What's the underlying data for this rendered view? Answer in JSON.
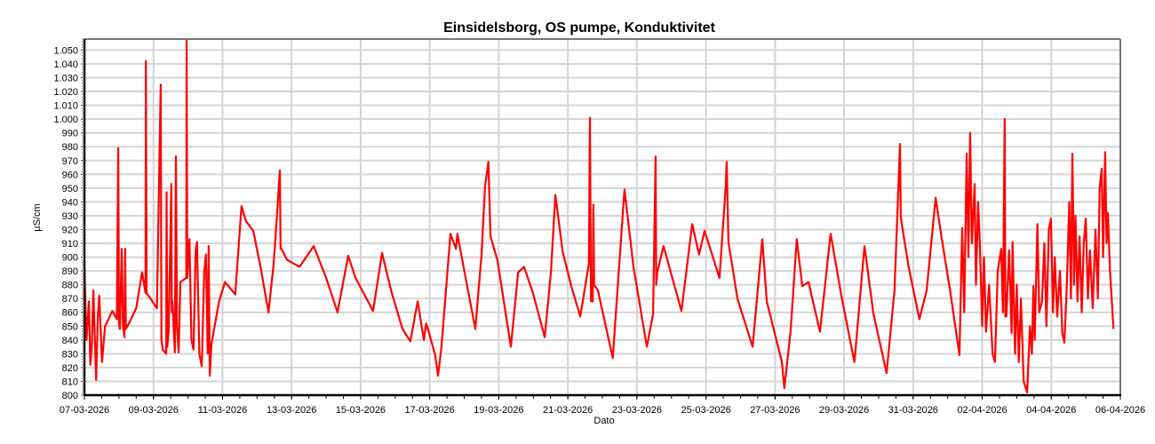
{
  "chart_data": {
    "type": "line",
    "title": "Einsidelsborg, OS pumpe, Konduktivitet",
    "xlabel": "Dato",
    "ylabel": "µS/cm",
    "x_unit": "days since 07-03-2026 00:00",
    "xlim": [
      0,
      30
    ],
    "ylim": [
      800,
      1058
    ],
    "y_ticks": [
      800,
      810,
      820,
      830,
      840,
      850,
      860,
      870,
      880,
      890,
      900,
      910,
      920,
      930,
      940,
      950,
      960,
      970,
      980,
      990,
      1000,
      1010,
      1020,
      1030,
      1040,
      1050
    ],
    "y_tick_labels": [
      "800",
      "810",
      "820",
      "830",
      "840",
      "850",
      "860",
      "870",
      "880",
      "890",
      "900",
      "910",
      "920",
      "930",
      "940",
      "950",
      "960",
      "970",
      "980",
      "990",
      "1.000",
      "1.010",
      "1.020",
      "1.030",
      "1.040",
      "1.050"
    ],
    "x_ticks": [
      0,
      2,
      4,
      6,
      8,
      10,
      12,
      14,
      16,
      18,
      20,
      22,
      24,
      26,
      28,
      30
    ],
    "x_tick_labels": [
      "07-03-2026",
      "09-03-2026",
      "11-03-2026",
      "13-03-2026",
      "15-03-2026",
      "17-03-2026",
      "19-03-2026",
      "21-03-2026",
      "23-03-2026",
      "25-03-2026",
      "27-03-2026",
      "29-03-2026",
      "31-03-2026",
      "02-04-2026",
      "04-04-2026",
      "06-04-2026"
    ],
    "grid": true,
    "legend": "none",
    "series": [
      {
        "name": "Konduktivitet",
        "color": "#ff0000",
        "points": [
          [
            0,
            893
          ],
          [
            0.06,
            840
          ],
          [
            0.13,
            868
          ],
          [
            0.17,
            822
          ],
          [
            0.21,
            833
          ],
          [
            0.26,
            876
          ],
          [
            0.34,
            811
          ],
          [
            0.39,
            858
          ],
          [
            0.43,
            872
          ],
          [
            0.51,
            824
          ],
          [
            0.6,
            850
          ],
          [
            0.81,
            861
          ],
          [
            0.94,
            855
          ],
          [
            0.98,
            979
          ],
          [
            1.0,
            852
          ],
          [
            1.03,
            848
          ],
          [
            1.08,
            906
          ],
          [
            1.12,
            850
          ],
          [
            1.16,
            842
          ],
          [
            1.18,
            906
          ],
          [
            1.2,
            848
          ],
          [
            1.29,
            852
          ],
          [
            1.5,
            863
          ],
          [
            1.67,
            889
          ],
          [
            1.77,
            874
          ],
          [
            1.78,
            1042
          ],
          [
            1.8,
            874
          ],
          [
            1.86,
            872
          ],
          [
            2.1,
            863
          ],
          [
            2.21,
            1025
          ],
          [
            2.23,
            840
          ],
          [
            2.27,
            833
          ],
          [
            2.37,
            830
          ],
          [
            2.38,
            947
          ],
          [
            2.4,
            835
          ],
          [
            2.44,
            846
          ],
          [
            2.52,
            953
          ],
          [
            2.53,
            860
          ],
          [
            2.55,
            868
          ],
          [
            2.62,
            831
          ],
          [
            2.65,
            973
          ],
          [
            2.68,
            850
          ],
          [
            2.73,
            831
          ],
          [
            2.78,
            882
          ],
          [
            2.95,
            885
          ],
          [
            2.96,
            1057
          ],
          [
            2.98,
            885
          ],
          [
            3.04,
            913
          ],
          [
            3.1,
            840
          ],
          [
            3.16,
            833
          ],
          [
            3.22,
            905
          ],
          [
            3.26,
            911
          ],
          [
            3.33,
            830
          ],
          [
            3.4,
            821
          ],
          [
            3.47,
            890
          ],
          [
            3.52,
            902
          ],
          [
            3.57,
            830
          ],
          [
            3.6,
            908
          ],
          [
            3.63,
            814
          ],
          [
            3.68,
            837
          ],
          [
            3.9,
            868
          ],
          [
            4.07,
            882
          ],
          [
            4.37,
            873
          ],
          [
            4.55,
            937
          ],
          [
            4.68,
            926
          ],
          [
            4.89,
            919
          ],
          [
            5.1,
            893
          ],
          [
            5.33,
            860
          ],
          [
            5.48,
            895
          ],
          [
            5.58,
            932
          ],
          [
            5.66,
            963
          ],
          [
            5.68,
            906
          ],
          [
            5.71,
            906
          ],
          [
            5.87,
            898
          ],
          [
            6.23,
            893
          ],
          [
            6.64,
            908
          ],
          [
            7.0,
            885
          ],
          [
            7.33,
            860
          ],
          [
            7.64,
            901
          ],
          [
            7.85,
            885
          ],
          [
            8.36,
            861
          ],
          [
            8.62,
            903
          ],
          [
            8.88,
            876
          ],
          [
            9.21,
            848
          ],
          [
            9.44,
            839
          ],
          [
            9.65,
            868
          ],
          [
            9.83,
            840
          ],
          [
            9.9,
            852
          ],
          [
            10.16,
            829
          ],
          [
            10.24,
            814
          ],
          [
            10.34,
            835
          ],
          [
            10.6,
            917
          ],
          [
            10.76,
            906
          ],
          [
            10.8,
            917
          ],
          [
            11.01,
            889
          ],
          [
            11.32,
            848
          ],
          [
            11.5,
            902
          ],
          [
            11.6,
            951
          ],
          [
            11.7,
            969
          ],
          [
            11.76,
            915
          ],
          [
            11.96,
            898
          ],
          [
            12.35,
            835
          ],
          [
            12.56,
            889
          ],
          [
            12.73,
            893
          ],
          [
            12.99,
            874
          ],
          [
            13.33,
            842
          ],
          [
            13.51,
            889
          ],
          [
            13.64,
            945
          ],
          [
            13.85,
            904
          ],
          [
            14.1,
            879
          ],
          [
            14.36,
            857
          ],
          [
            14.61,
            895
          ],
          [
            14.64,
            1001
          ],
          [
            14.67,
            868
          ],
          [
            14.72,
            868
          ],
          [
            14.74,
            938
          ],
          [
            14.76,
            880
          ],
          [
            14.87,
            876
          ],
          [
            15.3,
            827
          ],
          [
            15.64,
            949
          ],
          [
            15.9,
            893
          ],
          [
            16.29,
            835
          ],
          [
            16.47,
            859
          ],
          [
            16.54,
            973
          ],
          [
            16.56,
            880
          ],
          [
            16.59,
            889
          ],
          [
            16.77,
            908
          ],
          [
            17.29,
            861
          ],
          [
            17.6,
            924
          ],
          [
            17.8,
            902
          ],
          [
            17.96,
            919
          ],
          [
            18.39,
            885
          ],
          [
            18.57,
            951
          ],
          [
            18.6,
            969
          ],
          [
            18.65,
            911
          ],
          [
            18.91,
            870
          ],
          [
            19.35,
            835
          ],
          [
            19.63,
            913
          ],
          [
            19.76,
            868
          ],
          [
            20.2,
            824
          ],
          [
            20.27,
            805
          ],
          [
            20.45,
            846
          ],
          [
            20.63,
            913
          ],
          [
            20.79,
            879
          ],
          [
            20.97,
            882
          ],
          [
            21.3,
            846
          ],
          [
            21.61,
            917
          ],
          [
            21.92,
            872
          ],
          [
            22.3,
            824
          ],
          [
            22.59,
            908
          ],
          [
            22.85,
            859
          ],
          [
            23.23,
            816
          ],
          [
            23.46,
            876
          ],
          [
            23.62,
            982
          ],
          [
            23.64,
            930
          ],
          [
            23.67,
            924
          ],
          [
            23.87,
            893
          ],
          [
            24.18,
            855
          ],
          [
            24.39,
            876
          ],
          [
            24.65,
            943
          ],
          [
            24.83,
            913
          ],
          [
            25.08,
            874
          ],
          [
            25.34,
            829
          ],
          [
            25.42,
            921
          ],
          [
            25.48,
            860
          ],
          [
            25.55,
            975
          ],
          [
            25.6,
            900
          ],
          [
            25.65,
            990
          ],
          [
            25.7,
            910
          ],
          [
            25.78,
            953
          ],
          [
            25.82,
            880
          ],
          [
            25.88,
            940
          ],
          [
            25.93,
            911
          ],
          [
            26.0,
            850
          ],
          [
            26.05,
            900
          ],
          [
            26.11,
            846
          ],
          [
            26.2,
            880
          ],
          [
            26.3,
            830
          ],
          [
            26.37,
            824
          ],
          [
            26.45,
            890
          ],
          [
            26.55,
            906
          ],
          [
            26.6,
            860
          ],
          [
            26.65,
            1000
          ],
          [
            26.67,
            857
          ],
          [
            26.7,
            857
          ],
          [
            26.78,
            905
          ],
          [
            26.85,
            845
          ],
          [
            26.88,
            911
          ],
          [
            26.95,
            830
          ],
          [
            27.0,
            880
          ],
          [
            27.06,
            824
          ],
          [
            27.12,
            870
          ],
          [
            27.2,
            810
          ],
          [
            27.3,
            802
          ],
          [
            27.38,
            850
          ],
          [
            27.44,
            830
          ],
          [
            27.48,
            879
          ],
          [
            27.52,
            840
          ],
          [
            27.6,
            924
          ],
          [
            27.65,
            860
          ],
          [
            27.73,
            868
          ],
          [
            27.8,
            910
          ],
          [
            27.86,
            850
          ],
          [
            27.93,
            920
          ],
          [
            27.99,
            928
          ],
          [
            28.05,
            860
          ],
          [
            28.1,
            900
          ],
          [
            28.17,
            857
          ],
          [
            28.25,
            890
          ],
          [
            28.32,
            845
          ],
          [
            28.38,
            838
          ],
          [
            28.45,
            880
          ],
          [
            28.52,
            940
          ],
          [
            28.57,
            870
          ],
          [
            28.61,
            975
          ],
          [
            28.66,
            880
          ],
          [
            28.7,
            930
          ],
          [
            28.76,
            868
          ],
          [
            28.82,
            915
          ],
          [
            28.88,
            860
          ],
          [
            28.94,
            910
          ],
          [
            29.0,
            928
          ],
          [
            29.06,
            870
          ],
          [
            29.12,
            905
          ],
          [
            29.2,
            863
          ],
          [
            29.28,
            920
          ],
          [
            29.35,
            870
          ],
          [
            29.4,
            950
          ],
          [
            29.46,
            964
          ],
          [
            29.5,
            900
          ],
          [
            29.56,
            976
          ],
          [
            29.6,
            910
          ],
          [
            29.64,
            932
          ],
          [
            29.7,
            890
          ],
          [
            29.77,
            861
          ],
          [
            29.8,
            848
          ]
        ]
      }
    ]
  }
}
